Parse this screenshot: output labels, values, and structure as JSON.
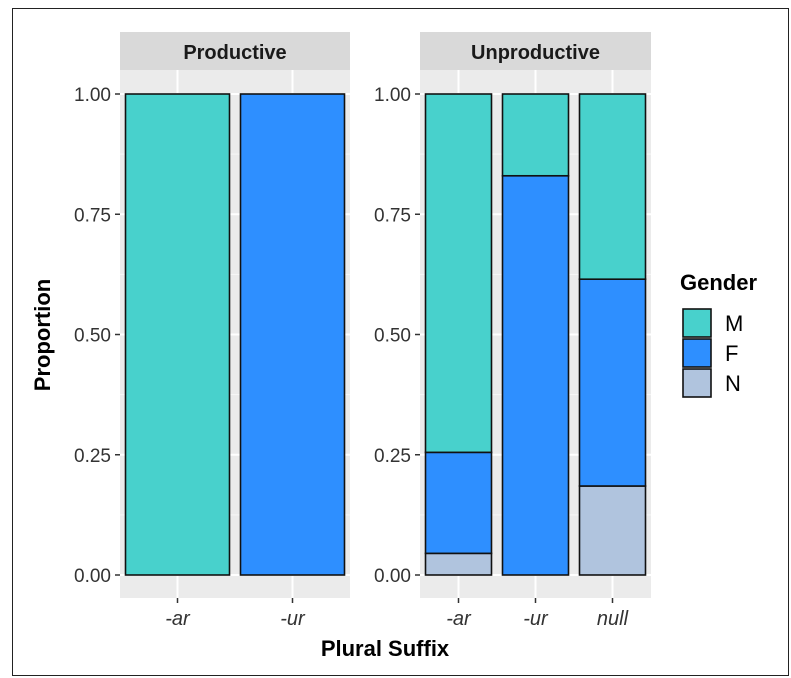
{
  "chart_data": {
    "type": "bar",
    "stacked": true,
    "normalized": true,
    "xlabel": "Plural Suffix",
    "ylabel": "Proportion",
    "ylim": [
      0,
      1
    ],
    "yticks": [
      "0.00",
      "0.25",
      "0.50",
      "0.75",
      "1.00"
    ],
    "ytick_values": [
      0,
      0.25,
      0.5,
      0.75,
      1
    ],
    "grid": true,
    "legend": {
      "title": "Gender",
      "position": "right",
      "entries": [
        "M",
        "F",
        "N"
      ]
    },
    "colors": {
      "M": "#48d1cc",
      "F": "#2e8fff",
      "N": "#b0c4de"
    },
    "panels": [
      {
        "title": "Productive",
        "categories": [
          "-ar",
          "-ur"
        ],
        "series": [
          {
            "name": "N",
            "values": [
              0,
              0
            ]
          },
          {
            "name": "F",
            "values": [
              0,
              1.0
            ]
          },
          {
            "name": "M",
            "values": [
              1.0,
              0
            ]
          }
        ]
      },
      {
        "title": "Unproductive",
        "categories": [
          "-ar",
          "-ur",
          "null"
        ],
        "series": [
          {
            "name": "N",
            "values": [
              0.045,
              0,
              0.185
            ]
          },
          {
            "name": "F",
            "values": [
              0.21,
              0.83,
              0.43
            ]
          },
          {
            "name": "M",
            "values": [
              0.745,
              0.17,
              0.385
            ]
          }
        ]
      }
    ]
  }
}
